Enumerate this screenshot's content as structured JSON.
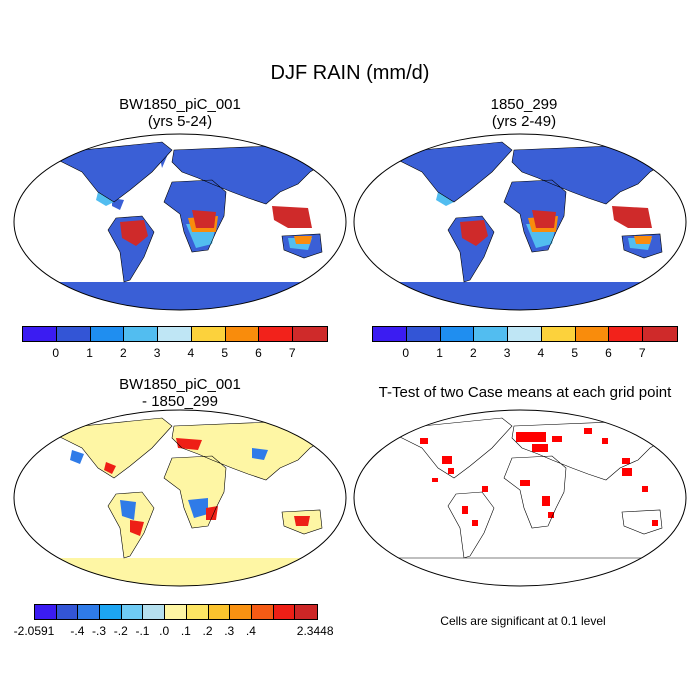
{
  "figure_title": "DJF RAIN (mm/d)",
  "panels": {
    "case1": {
      "title_line1": "BW1850_piC_001",
      "title_line2": "(yrs 5-24)"
    },
    "case2": {
      "title_line1": "1850_299",
      "title_line2": "(yrs 2-49)"
    },
    "diff": {
      "title_line1": "BW1850_piC_001",
      "title_line2": "- 1850_299"
    },
    "ttest": {
      "title": "T-Test of two Case means at each grid point",
      "note": "Cells are significant at 0.1 level"
    }
  },
  "colorbar_main": {
    "colors": [
      "#3b1cf2",
      "#3355d6",
      "#1f8ef0",
      "#52bdf0",
      "#bfe6f5",
      "#fcd23c",
      "#f98c0c",
      "#f2221b",
      "#cf2a2a"
    ],
    "labels": [
      "0",
      "1",
      "2",
      "3",
      "4",
      "5",
      "6",
      "7"
    ]
  },
  "colorbar_diff": {
    "colors": [
      "#3b1cf2",
      "#3355d6",
      "#2f7be8",
      "#1da5f2",
      "#6fcbf4",
      "#b5e0ef",
      "#fef6a4",
      "#fde563",
      "#fbc32e",
      "#f99212",
      "#f55b15",
      "#ee1f16",
      "#cc2626"
    ],
    "labels": [
      "-2.0591",
      "-.4",
      "-.3",
      "-.2",
      "-.1",
      ".0",
      ".1",
      ".2",
      ".3",
      ".4",
      "2.3448"
    ]
  },
  "map_colors": {
    "ocean": "#ffffff",
    "land_dry": "#3a5fd6",
    "land_mid": "#52bdf0",
    "land_wet": "#cf2a2a",
    "land_orange": "#f98c0c",
    "diff_base": "#fef6a4",
    "diff_blue": "#2f7be8",
    "diff_red": "#ee1f16",
    "sig": "#ff0000"
  }
}
